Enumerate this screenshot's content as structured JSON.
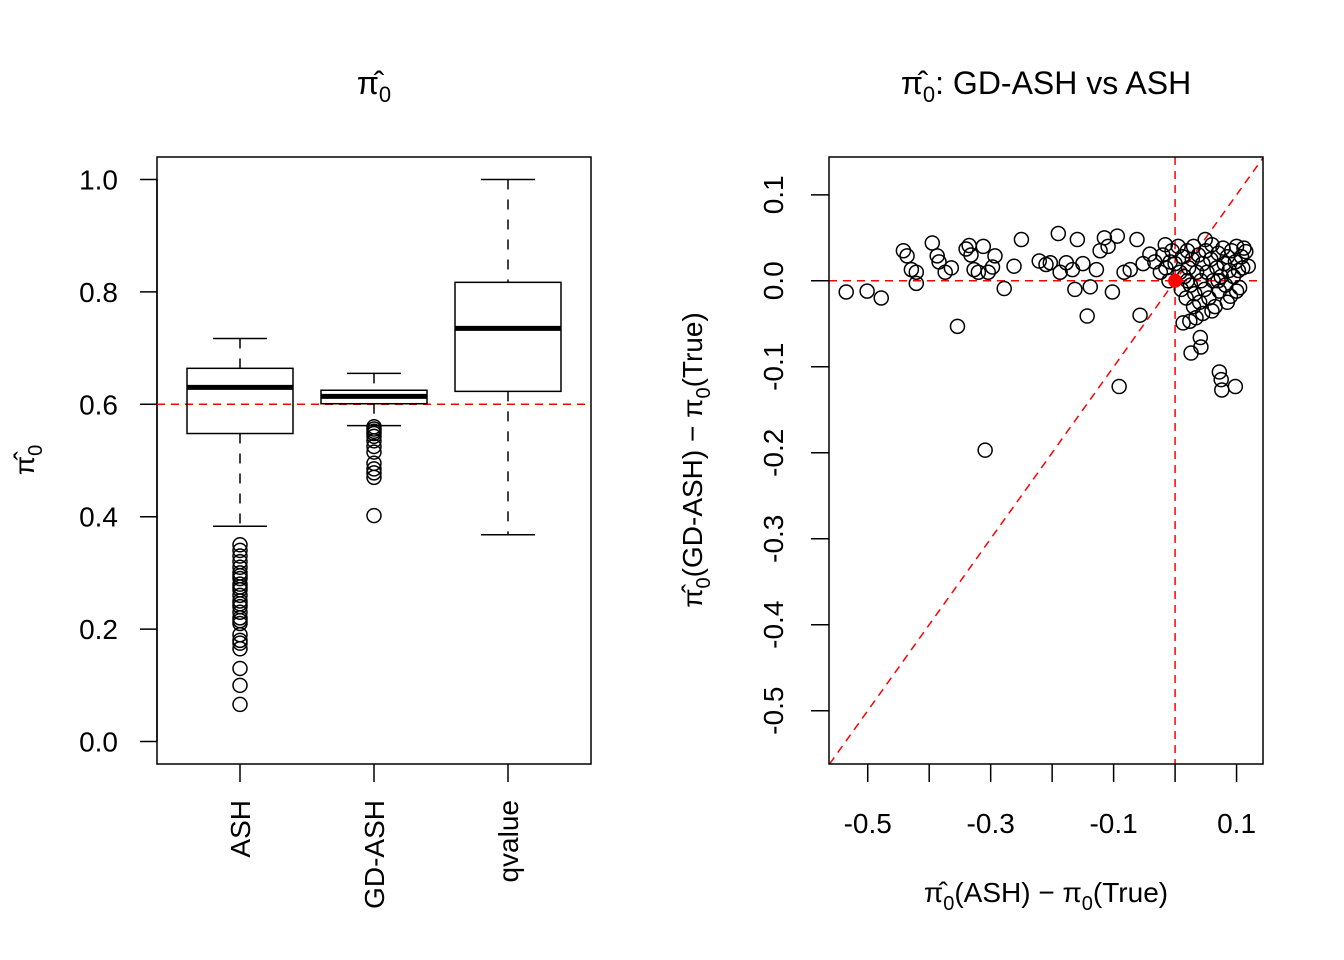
{
  "chart_data": [
    {
      "type": "box",
      "title": {
        "main": "π̂",
        "sub": "0",
        "suffix": ""
      },
      "ylabel": {
        "main": "π̂",
        "sub": "0"
      },
      "categories": [
        "ASH",
        "GD-ASH",
        "qvalue"
      ],
      "ylim": [
        -0.04,
        1.04
      ],
      "yticks": [
        "0.0",
        "0.2",
        "0.4",
        "0.6",
        "0.8",
        "1.0"
      ],
      "reference_line": {
        "y": 0.6,
        "color": "#ff0000",
        "style": "dashed"
      },
      "boxes": [
        {
          "name": "ASH",
          "whisker_low": 0.383,
          "q1": 0.548,
          "median": 0.63,
          "q3": 0.664,
          "whisker_high": 0.717,
          "outliers": [
            0.35,
            0.34,
            0.33,
            0.32,
            0.31,
            0.3,
            0.295,
            0.29,
            0.28,
            0.275,
            0.27,
            0.26,
            0.25,
            0.245,
            0.24,
            0.23,
            0.22,
            0.215,
            0.21,
            0.19,
            0.18,
            0.175,
            0.165,
            0.13,
            0.1,
            0.066
          ]
        },
        {
          "name": "GD-ASH",
          "whisker_low": 0.562,
          "q1": 0.601,
          "median": 0.614,
          "q3": 0.625,
          "whisker_high": 0.655,
          "outliers": [
            0.56,
            0.556,
            0.552,
            0.548,
            0.543,
            0.535,
            0.525,
            0.515,
            0.495,
            0.485,
            0.478,
            0.47,
            0.402
          ]
        },
        {
          "name": "qvalue",
          "whisker_low": 0.368,
          "q1": 0.623,
          "median": 0.735,
          "q3": 0.817,
          "whisker_high": 1.0,
          "outliers": []
        }
      ]
    },
    {
      "type": "scatter",
      "title": {
        "main": "π̂",
        "sub": "0",
        "suffix": ": GD-ASH vs ASH"
      },
      "xlabel": {
        "a": "π̂",
        "a_sub": "0",
        "b": "(ASH) − π",
        "b_sub": "0",
        "c": "(True)"
      },
      "ylabel": {
        "a": "π̂",
        "a_sub": "0",
        "b": "(GD-ASH) − π",
        "b_sub": "0",
        "c": "(True)"
      },
      "xlim": [
        -0.563,
        0.143
      ],
      "ylim": [
        -0.562,
        0.144
      ],
      "xticks": [
        -0.5,
        -0.4,
        -0.3,
        -0.2,
        -0.1,
        0.0,
        0.1
      ],
      "xtick_labels": [
        "-0.5",
        "",
        "-0.3",
        "",
        "-0.1",
        "",
        "0.1"
      ],
      "yticks": [
        0.1,
        0.0,
        -0.1,
        -0.2,
        -0.3,
        -0.4,
        -0.5
      ],
      "ytick_labels": [
        "0.1",
        "0.0",
        "-0.1",
        "-0.2",
        "-0.3",
        "-0.4",
        "-0.5"
      ],
      "reference_lines": {
        "hline": 0,
        "vline": 0,
        "diagonal": "y = x",
        "color": "#ff0000",
        "style": "dashed"
      },
      "highlight_point": {
        "x": 0,
        "y": 0,
        "color": "#ff0000"
      },
      "points": [
        [
          -0.535,
          -0.013
        ],
        [
          -0.501,
          -0.012
        ],
        [
          -0.478,
          -0.02
        ],
        [
          -0.442,
          0.035
        ],
        [
          -0.436,
          0.029
        ],
        [
          -0.429,
          0.013
        ],
        [
          -0.421,
          -0.003
        ],
        [
          -0.421,
          0.01
        ],
        [
          -0.395,
          0.044
        ],
        [
          -0.387,
          0.029
        ],
        [
          -0.384,
          0.022
        ],
        [
          -0.374,
          0.01
        ],
        [
          -0.364,
          0.015
        ],
        [
          -0.354,
          -0.053
        ],
        [
          -0.34,
          0.037
        ],
        [
          -0.335,
          0.041
        ],
        [
          -0.332,
          0.03
        ],
        [
          -0.327,
          0.013
        ],
        [
          -0.32,
          0.01
        ],
        [
          -0.312,
          0.04
        ],
        [
          -0.309,
          -0.197
        ],
        [
          -0.304,
          0.01
        ],
        [
          -0.297,
          0.016
        ],
        [
          -0.293,
          0.029
        ],
        [
          -0.278,
          -0.009
        ],
        [
          -0.262,
          0.017
        ],
        [
          -0.25,
          0.048
        ],
        [
          -0.221,
          0.023
        ],
        [
          -0.21,
          0.019
        ],
        [
          -0.203,
          0.021
        ],
        [
          -0.19,
          0.055
        ],
        [
          -0.187,
          0.01
        ],
        [
          -0.177,
          0.021
        ],
        [
          -0.167,
          0.013
        ],
        [
          -0.163,
          -0.01
        ],
        [
          -0.159,
          0.048
        ],
        [
          -0.15,
          0.02
        ],
        [
          -0.143,
          -0.041
        ],
        [
          -0.138,
          -0.007
        ],
        [
          -0.128,
          0.013
        ],
        [
          -0.122,
          0.035
        ],
        [
          -0.115,
          0.05
        ],
        [
          -0.109,
          0.04
        ],
        [
          -0.102,
          -0.013
        ],
        [
          -0.094,
          0.052
        ],
        [
          -0.091,
          -0.123
        ],
        [
          -0.083,
          0.01
        ],
        [
          -0.073,
          0.013
        ],
        [
          -0.062,
          0.048
        ],
        [
          -0.057,
          -0.04
        ],
        [
          -0.052,
          0.02
        ],
        [
          -0.041,
          0.031
        ],
        [
          -0.033,
          0.022
        ],
        [
          -0.024,
          0.01
        ],
        [
          -0.016,
          0.042
        ],
        [
          -0.008,
          0.022
        ],
        [
          0.013,
          -0.049
        ],
        [
          0.024,
          -0.047
        ],
        [
          0.034,
          -0.043
        ],
        [
          0.041,
          -0.066
        ],
        [
          0.042,
          -0.077
        ],
        [
          0.026,
          -0.084
        ],
        [
          0.072,
          -0.106
        ],
        [
          0.075,
          -0.115
        ],
        [
          0.076,
          -0.127
        ],
        [
          0.098,
          -0.123
        ],
        [
          0.049,
          0.048
        ],
        [
          0.115,
          0.034
        ],
        [
          0.119,
          0.017
        ],
        [
          -0.02,
          0.03
        ],
        [
          -0.015,
          0.015
        ],
        [
          -0.01,
          0.0
        ],
        [
          -0.005,
          0.035
        ],
        [
          0.0,
          0.02
        ],
        [
          0.005,
          0.04
        ],
        [
          0.008,
          0.01
        ],
        [
          0.01,
          -0.01
        ],
        [
          0.012,
          0.028
        ],
        [
          0.015,
          0.005
        ],
        [
          0.018,
          -0.02
        ],
        [
          0.02,
          0.035
        ],
        [
          0.022,
          0.015
        ],
        [
          0.025,
          -0.005
        ],
        [
          0.028,
          0.025
        ],
        [
          0.03,
          0.04
        ],
        [
          0.032,
          -0.015
        ],
        [
          0.035,
          0.01
        ],
        [
          0.038,
          0.03
        ],
        [
          0.04,
          -0.025
        ],
        [
          0.042,
          0.0
        ],
        [
          0.045,
          0.02
        ],
        [
          0.048,
          -0.01
        ],
        [
          0.05,
          0.035
        ],
        [
          0.052,
          0.01
        ],
        [
          0.055,
          -0.02
        ],
        [
          0.058,
          0.025
        ],
        [
          0.06,
          0.042
        ],
        [
          0.062,
          0.0
        ],
        [
          0.065,
          -0.03
        ],
        [
          0.068,
          0.015
        ],
        [
          0.07,
          0.032
        ],
        [
          0.072,
          -0.012
        ],
        [
          0.075,
          0.005
        ],
        [
          0.078,
          0.038
        ],
        [
          0.08,
          0.02
        ],
        [
          0.082,
          -0.005
        ],
        [
          0.085,
          0.028
        ],
        [
          0.088,
          0.012
        ],
        [
          0.09,
          -0.018
        ],
        [
          0.092,
          0.035
        ],
        [
          0.095,
          0.005
        ],
        [
          0.098,
          0.022
        ],
        [
          0.1,
          0.04
        ],
        [
          0.103,
          0.012
        ],
        [
          0.105,
          -0.008
        ],
        [
          0.108,
          0.028
        ],
        [
          0.11,
          0.015
        ],
        [
          0.112,
          0.038
        ],
        [
          0.06,
          -0.035
        ],
        [
          0.045,
          -0.038
        ],
        [
          0.03,
          -0.03
        ],
        [
          0.02,
          0.0
        ],
        [
          0.07,
          0.0
        ],
        [
          0.085,
          -0.025
        ],
        [
          0.1,
          -0.012
        ]
      ]
    }
  ]
}
